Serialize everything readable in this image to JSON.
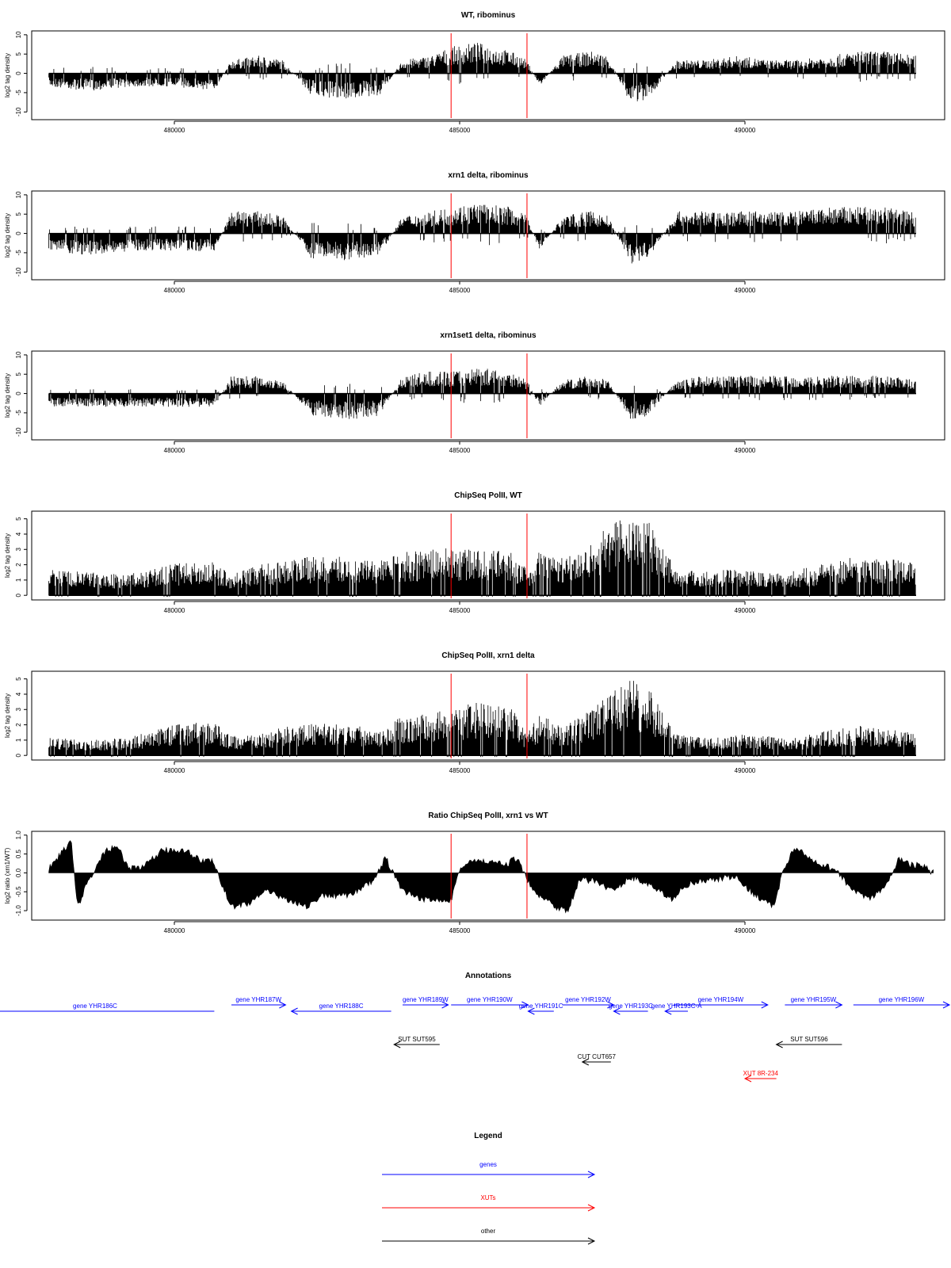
{
  "figure": {
    "x_range": [
      477500,
      493500
    ],
    "x_ticks": [
      480000,
      485000,
      490000
    ],
    "x_tick_labels": [
      "480000",
      "485000",
      "490000"
    ],
    "highlight_positions": [
      484850,
      486180
    ],
    "colors": {
      "bars": "#000000",
      "highlight": "#ff0000",
      "genes": "#0000ff",
      "xuts": "#ff0000",
      "other": "#000000"
    }
  },
  "chart_data": [
    {
      "type": "bar",
      "title": "WT, ribominus",
      "ylabel": "log2 tag density",
      "ylim": [
        -12,
        11
      ],
      "y_ticks": [
        -10,
        -5,
        0,
        5,
        10
      ],
      "y_tick_labels": [
        "-10",
        "-5",
        "0",
        "5",
        "10"
      ],
      "series": [
        {
          "x": [
            477800,
            478500,
            479200,
            480000,
            480700,
            481000,
            481500,
            481900,
            482400,
            483000,
            483600,
            484000,
            484500,
            484850,
            485300,
            485900,
            486180,
            486400,
            486800,
            487300,
            487600,
            488000,
            488300,
            488800,
            489300,
            489900,
            490400,
            490900,
            491500,
            492000,
            492500,
            493000
          ],
          "values": [
            -3,
            -4,
            -3,
            -3,
            -4,
            3,
            4,
            3,
            -5,
            -6,
            -5,
            3,
            4,
            6,
            7,
            5,
            3,
            -3,
            4,
            5,
            4,
            -7,
            -6,
            3,
            3,
            4,
            3,
            3,
            4,
            5,
            5,
            4
          ]
        }
      ]
    },
    {
      "type": "bar",
      "title": "xrn1 delta, ribominus",
      "ylabel": "log2 tag density",
      "ylim": [
        -12,
        11
      ],
      "y_ticks": [
        -10,
        -5,
        0,
        5,
        10
      ],
      "y_tick_labels": [
        "-10",
        "-5",
        "0",
        "5",
        "10"
      ],
      "series": [
        {
          "x": [
            477800,
            478500,
            479200,
            480000,
            480700,
            481000,
            481500,
            481900,
            482400,
            483000,
            483600,
            484000,
            484500,
            484850,
            485300,
            485900,
            486180,
            486400,
            486800,
            487300,
            487600,
            488000,
            488300,
            488800,
            489300,
            489900,
            490400,
            490900,
            491500,
            492000,
            492500,
            493000
          ],
          "values": [
            -4,
            -5,
            -4,
            -4,
            -4,
            5,
            5,
            4,
            -6,
            -6,
            -5,
            4,
            5,
            6,
            7,
            6,
            4,
            -4,
            4,
            5,
            4,
            -7,
            -6,
            5,
            5,
            5,
            5,
            5,
            6,
            6,
            6,
            5
          ]
        }
      ]
    },
    {
      "type": "bar",
      "title": "xrn1set1 delta, ribominus",
      "ylabel": "log2 tag density",
      "ylim": [
        -12,
        11
      ],
      "y_ticks": [
        -10,
        -5,
        0,
        5,
        10
      ],
      "y_tick_labels": [
        "-10",
        "-5",
        "0",
        "5",
        "10"
      ],
      "series": [
        {
          "x": [
            477800,
            478500,
            479200,
            480000,
            480700,
            481000,
            481500,
            481900,
            482400,
            483000,
            483600,
            484000,
            484500,
            484850,
            485300,
            485900,
            486180,
            486400,
            486800,
            487300,
            487600,
            488000,
            488300,
            488800,
            489300,
            489900,
            490400,
            490900,
            491500,
            492000,
            492500,
            493000
          ],
          "values": [
            -3,
            -3,
            -3,
            -3,
            -3,
            4,
            4,
            3,
            -5,
            -6,
            -5,
            4,
            5,
            5,
            6,
            5,
            3,
            -3,
            3,
            4,
            3,
            -6,
            -5,
            3,
            4,
            4,
            4,
            4,
            4,
            4,
            4,
            3
          ]
        }
      ]
    },
    {
      "type": "bar",
      "title": "ChipSeq PolII, WT",
      "ylabel": "log2 tag density",
      "ylim": [
        -0.3,
        5.5
      ],
      "y_ticks": [
        0,
        1,
        2,
        3,
        4,
        5
      ],
      "y_tick_labels": [
        "0",
        "1",
        "2",
        "3",
        "4",
        "5"
      ],
      "series": [
        {
          "x": [
            477800,
            478500,
            479200,
            480000,
            480700,
            481000,
            481500,
            481900,
            482400,
            483000,
            483600,
            484000,
            484500,
            484850,
            485300,
            485900,
            486180,
            486400,
            486800,
            487300,
            487600,
            488000,
            488300,
            488800,
            489300,
            489900,
            490400,
            490900,
            491500,
            492000,
            492500,
            493000
          ],
          "values": [
            1.5,
            1.3,
            1.2,
            1.8,
            1.9,
            1.2,
            1.8,
            2.0,
            2.2,
            2.2,
            2.0,
            2.5,
            2.6,
            2.7,
            2.6,
            2.5,
            1.5,
            2.6,
            2.2,
            3.0,
            4.0,
            4.8,
            4.6,
            1.5,
            1.4,
            1.5,
            1.3,
            1.4,
            2.0,
            2.2,
            2.1,
            1.8
          ]
        }
      ]
    },
    {
      "type": "bar",
      "title": "ChipSeq PolII, xrn1 delta",
      "ylabel": "log2 tag density",
      "ylim": [
        -0.3,
        5.5
      ],
      "y_ticks": [
        0,
        1,
        2,
        3,
        4,
        5
      ],
      "y_tick_labels": [
        "0",
        "1",
        "2",
        "3",
        "4",
        "5"
      ],
      "series": [
        {
          "x": [
            477800,
            478500,
            479200,
            480000,
            480700,
            481000,
            481500,
            481900,
            482400,
            483000,
            483600,
            484000,
            484500,
            484850,
            485300,
            485900,
            486180,
            486400,
            486800,
            487300,
            487600,
            488000,
            488300,
            488800,
            489300,
            489900,
            490400,
            490900,
            491500,
            492000,
            492500,
            493000
          ],
          "values": [
            1.0,
            0.9,
            1.0,
            1.8,
            1.9,
            1.1,
            1.2,
            1.6,
            1.8,
            1.8,
            1.6,
            2.2,
            2.4,
            2.8,
            3.0,
            2.8,
            1.2,
            2.4,
            1.6,
            2.6,
            3.5,
            4.3,
            4.0,
            1.2,
            1.0,
            1.2,
            1.1,
            1.0,
            1.5,
            1.7,
            1.6,
            1.2
          ]
        }
      ]
    },
    {
      "type": "area",
      "title": "Ratio ChipSeq PolII, xrn1 vs WT",
      "ylabel": "log2 ratio (xrn1/WT)",
      "ylim": [
        -1.25,
        1.1
      ],
      "y_ticks": [
        -1.0,
        -0.5,
        0.0,
        0.5,
        1.0
      ],
      "y_tick_labels": [
        "-1.0",
        "-0.5",
        "0.0",
        "0.5",
        "1.0"
      ],
      "series": [
        {
          "x": [
            477800,
            478000,
            478200,
            478300,
            478500,
            478800,
            479000,
            479200,
            479500,
            479800,
            480200,
            480500,
            480700,
            480800,
            481000,
            481300,
            481600,
            482000,
            482300,
            482600,
            483000,
            483300,
            483500,
            483700,
            484000,
            484300,
            484600,
            484850,
            485000,
            485200,
            485500,
            485800,
            486000,
            486180,
            486400,
            486700,
            486900,
            487100,
            487400,
            487700,
            488000,
            488300,
            488700,
            489000,
            489400,
            489800,
            490200,
            490500,
            490700,
            490900,
            491100,
            491300,
            491600,
            491900,
            492200,
            492500,
            492700,
            492900,
            493100,
            493300
          ],
          "values": [
            0.1,
            0.5,
            0.8,
            -0.9,
            -0.2,
            0.6,
            0.7,
            0.1,
            0.2,
            0.6,
            0.6,
            0.3,
            0.3,
            -0.2,
            -0.9,
            -0.8,
            -0.5,
            -0.7,
            -0.9,
            -0.6,
            -0.6,
            -0.4,
            -0.2,
            0.4,
            -0.5,
            -0.7,
            -0.7,
            -0.7,
            0.1,
            0.3,
            0.3,
            0.2,
            0.4,
            -0.2,
            -0.6,
            -0.9,
            -1.0,
            -0.2,
            -0.2,
            -0.5,
            -0.1,
            -0.3,
            -0.7,
            -0.3,
            -0.2,
            -0.1,
            -0.6,
            -0.9,
            0.2,
            0.7,
            0.4,
            0.2,
            0.1,
            -0.5,
            -0.7,
            -0.3,
            0.4,
            0.2,
            0.2,
            0.0
          ]
        }
      ]
    }
  ],
  "annotations": {
    "title": "Annotations",
    "items": [
      {
        "label": "gene YHR186C",
        "type": "genes",
        "x_start": 475300,
        "x_end": 480700,
        "row": 1,
        "direction": "none"
      },
      {
        "label": "gene YHR187W",
        "type": "genes",
        "x_start": 481000,
        "x_end": 481950,
        "row": 0,
        "direction": "right"
      },
      {
        "label": "gene YHR188C",
        "type": "genes",
        "x_start": 482050,
        "x_end": 483800,
        "row": 1,
        "direction": "left"
      },
      {
        "label": "gene YHR189W",
        "type": "genes",
        "x_start": 484000,
        "x_end": 484800,
        "row": 0,
        "direction": "right"
      },
      {
        "label": "gene YHR190W",
        "type": "genes",
        "x_start": 484850,
        "x_end": 486200,
        "row": 0,
        "direction": "right"
      },
      {
        "label": "gene YHR191C",
        "type": "genes",
        "x_start": 486200,
        "x_end": 486650,
        "row": 1,
        "direction": "left"
      },
      {
        "label": "gene YHR192W",
        "type": "genes",
        "x_start": 486800,
        "x_end": 487700,
        "row": 0,
        "direction": "right"
      },
      {
        "label": "gene YHR193C",
        "type": "genes",
        "x_start": 487700,
        "x_end": 488300,
        "row": 1,
        "direction": "left"
      },
      {
        "label": "gene YHR193C-A",
        "type": "genes",
        "x_start": 488600,
        "x_end": 489000,
        "row": 1,
        "direction": "left"
      },
      {
        "label": "gene YHR194W",
        "type": "genes",
        "x_start": 488750,
        "x_end": 490400,
        "row": 0,
        "direction": "right"
      },
      {
        "label": "gene YHR195W",
        "type": "genes",
        "x_start": 490700,
        "x_end": 491700,
        "row": 0,
        "direction": "right"
      },
      {
        "label": "gene YHR196W",
        "type": "genes",
        "x_start": 491900,
        "x_end": 493600,
        "row": 0,
        "direction": "right"
      },
      {
        "label": "SUT SUT595",
        "type": "other",
        "x_start": 483850,
        "x_end": 484650,
        "row": 2,
        "direction": "left"
      },
      {
        "label": "SUT SUT596",
        "type": "other",
        "x_start": 490550,
        "x_end": 491700,
        "row": 2,
        "direction": "left"
      },
      {
        "label": "CUT CUT657",
        "type": "other",
        "x_start": 487150,
        "x_end": 487650,
        "row": 3,
        "direction": "left"
      },
      {
        "label": "XUT 8R-234",
        "type": "xuts",
        "x_start": 490000,
        "x_end": 490550,
        "row": 4,
        "direction": "left"
      }
    ]
  },
  "legend": {
    "title": "Legend",
    "items": [
      {
        "label": "genes",
        "type": "genes"
      },
      {
        "label": "XUTs",
        "type": "xuts"
      },
      {
        "label": "other",
        "type": "other"
      }
    ]
  }
}
